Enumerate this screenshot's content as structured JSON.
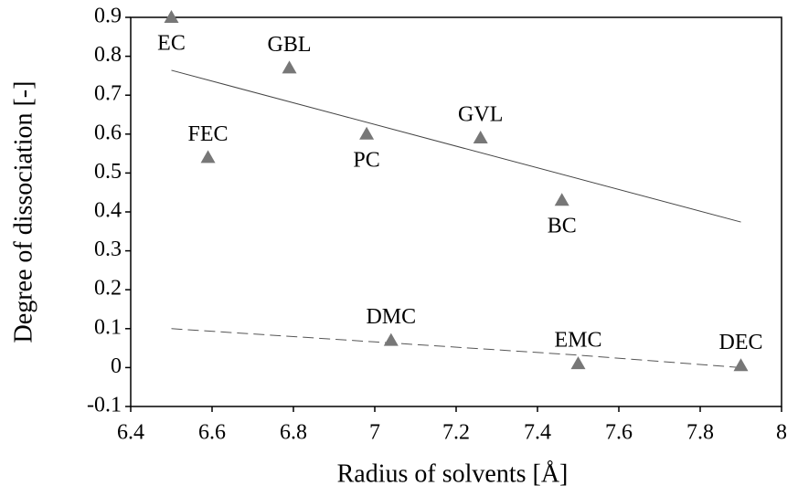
{
  "chart_data": {
    "type": "scatter",
    "x_label": "Radius of solvents [Å]",
    "y_label": "Degree of dissociation [-]",
    "x": [
      6.5,
      6.79,
      6.59,
      6.98,
      7.26,
      7.46,
      7.04,
      7.5,
      7.9
    ],
    "values": [
      0.9,
      0.77,
      0.54,
      0.6,
      0.59,
      0.43,
      0.07,
      0.01,
      0.005
    ],
    "point_labels": [
      "EC",
      "GBL",
      "FEC",
      "PC",
      "GVL",
      "BC",
      "DMC",
      "EMC",
      "DEC"
    ],
    "label_position": [
      "below",
      "above",
      "above",
      "below",
      "above",
      "below",
      "above",
      "above",
      "above"
    ],
    "color": "#777777",
    "trendlines": [
      {
        "x": [
          6.5,
          7.9
        ],
        "values": [
          0.764,
          0.374
        ],
        "style": "solid"
      },
      {
        "x": [
          6.5,
          7.0,
          7.5,
          7.9
        ],
        "values": [
          0.1,
          0.066,
          0.032,
          0.0
        ],
        "style": "dashed"
      }
    ],
    "xlim": [
      6.4,
      8
    ],
    "xticks": [
      6.4,
      6.6,
      6.8,
      7,
      7.2,
      7.4,
      7.6,
      7.8,
      8
    ],
    "ylim": [
      -0.1,
      0.9
    ],
    "yticks": [
      -0.1,
      0,
      0.1,
      0.2,
      0.3,
      0.4,
      0.5,
      0.6,
      0.7,
      0.8,
      0.9
    ],
    "grid": false
  }
}
